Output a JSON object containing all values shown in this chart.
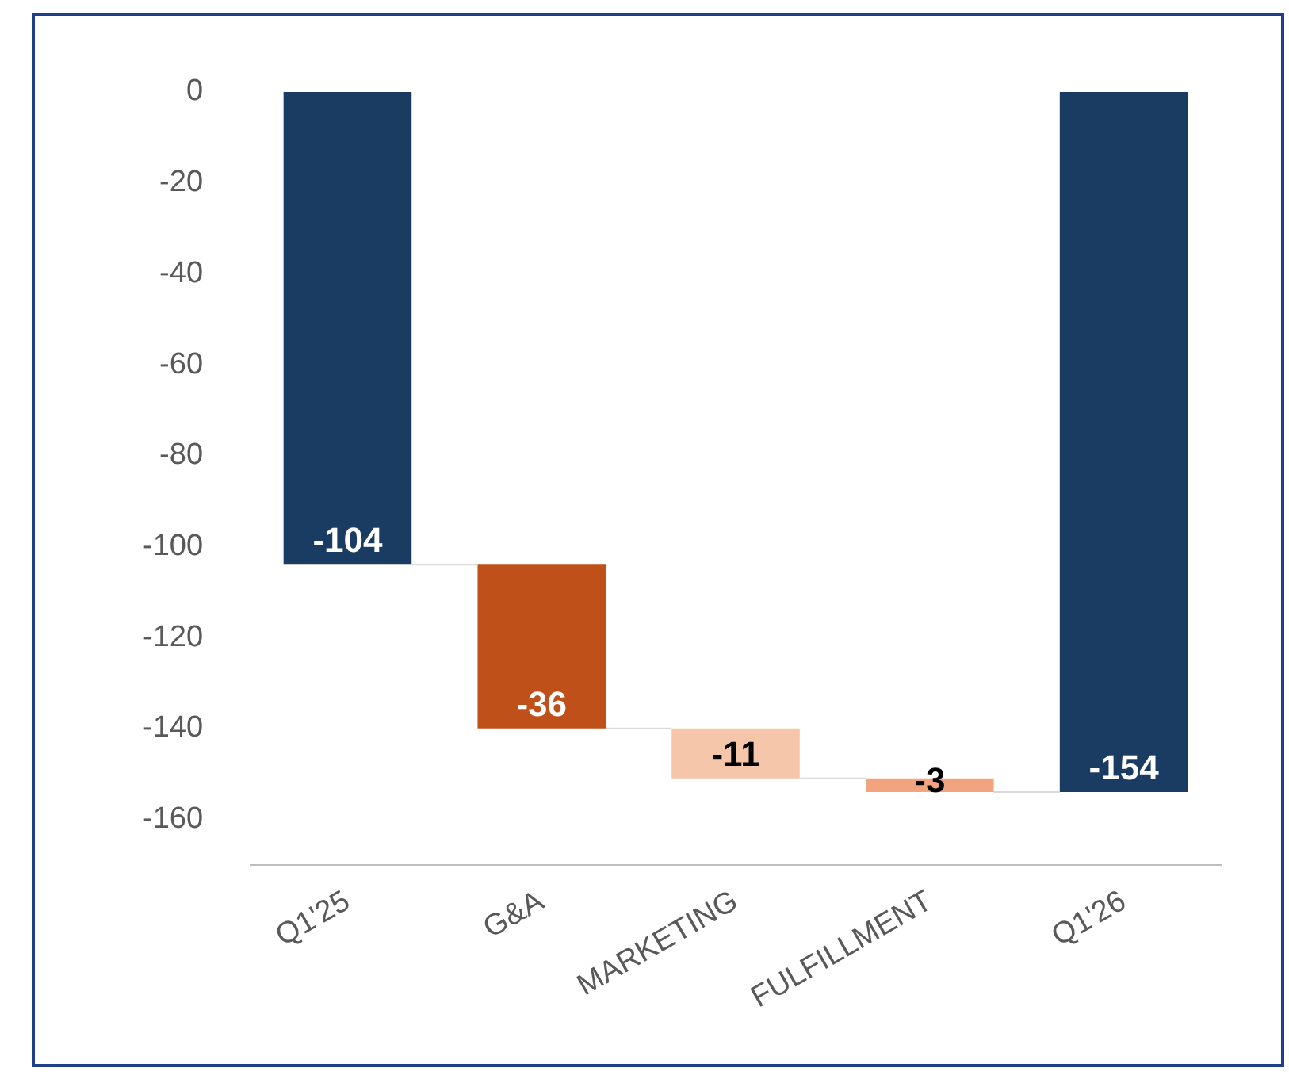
{
  "chart_data": {
    "type": "bar",
    "categories": [
      "Q1'25",
      "G&A",
      "MARKETING",
      "FULFILLMENT",
      "Q1'26"
    ],
    "values": [
      -104,
      -36,
      -11,
      -3,
      -154
    ],
    "base": [
      0,
      -104,
      -140,
      -151,
      0
    ],
    "colors": [
      "#1a3c62",
      "#c05019",
      "#f6c6ab",
      "#f2a47e",
      "#1a3c62"
    ],
    "ylim": [
      -170,
      0
    ],
    "yticks": [
      0,
      -20,
      -40,
      -60,
      -80,
      -100,
      -120,
      -140,
      -160
    ],
    "grid": false,
    "legend": false,
    "data_labels": true
  }
}
